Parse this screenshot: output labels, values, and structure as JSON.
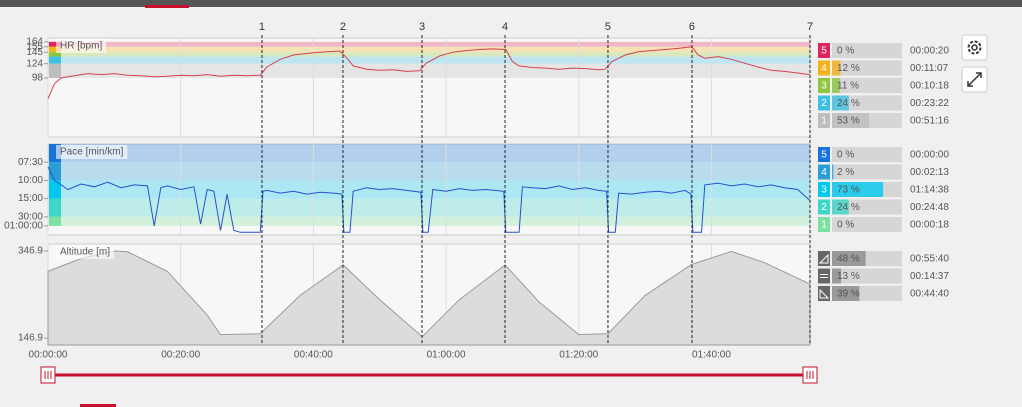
{
  "x_axis": {
    "xlim": [
      0,
      114.85
    ],
    "xticks": [
      {
        "value": 0,
        "label": "00:00:00"
      },
      {
        "value": 20,
        "label": "00:20:00"
      },
      {
        "value": 40,
        "label": "00:40:00"
      },
      {
        "value": 60,
        "label": "01:00:00"
      },
      {
        "value": 80,
        "label": "01:20:00"
      },
      {
        "value": 100,
        "label": "01:40:00"
      }
    ]
  },
  "laps": {
    "labels": [
      "1",
      "2",
      "3",
      "4",
      "5",
      "6",
      "7"
    ],
    "x": [
      32.25,
      44.46,
      56.37,
      68.88,
      84.4,
      97.06,
      114.85
    ]
  },
  "chart_data": [
    {
      "type": "line",
      "title": "HR [bpm]",
      "color": "#d6404f",
      "ylim": [
        -10,
        171
      ],
      "yticks": [
        98,
        124,
        145,
        155,
        164
      ],
      "x": [
        0,
        1,
        2,
        4,
        6,
        8,
        10,
        12,
        14,
        16,
        18,
        20,
        22,
        24,
        26,
        28,
        30,
        32,
        33,
        35,
        37,
        40,
        42,
        44,
        45,
        46,
        48,
        50,
        52,
        54,
        56,
        57,
        59,
        61,
        63,
        65,
        67,
        69,
        70,
        71,
        73,
        75,
        77,
        79,
        81,
        83,
        84,
        85,
        87,
        89,
        91,
        93,
        95,
        97,
        98,
        99,
        101,
        103,
        105,
        107,
        109,
        111,
        113,
        114.8
      ],
      "values": [
        60,
        88,
        98,
        102,
        106,
        104,
        106,
        103,
        102,
        100,
        101,
        103,
        102,
        104,
        101,
        103,
        102,
        103,
        118,
        132,
        140,
        144,
        146,
        147,
        135,
        120,
        114,
        112,
        113,
        110,
        111,
        125,
        138,
        145,
        148,
        150,
        151,
        150,
        128,
        120,
        117,
        116,
        114,
        116,
        115,
        113,
        114,
        128,
        140,
        146,
        148,
        150,
        152,
        155,
        140,
        134,
        137,
        132,
        125,
        118,
        112,
        110,
        107,
        104
      ],
      "zones": {
        "labels": [
          "5",
          "4",
          "3",
          "2",
          "1"
        ],
        "colors": [
          "#e0245e",
          "#f5b21b",
          "#8dc63f",
          "#3fc0e0",
          "#bdbdbd"
        ],
        "ranges": [
          [
            155,
            164
          ],
          [
            145,
            155
          ],
          [
            137,
            145
          ],
          [
            124,
            137
          ],
          [
            98,
            124
          ]
        ],
        "values": [
          0,
          12,
          11,
          24,
          53
        ],
        "value_labels": [
          "0 %",
          "12 %",
          "11 %",
          "24 %",
          "53 %"
        ],
        "times": [
          "00:00:20",
          "00:11:07",
          "00:10:18",
          "00:23:22",
          "00:51:16"
        ]
      }
    },
    {
      "type": "line",
      "title": "Pace [min/km]",
      "color": "#2a4fd0",
      "ylim": [
        0,
        10
      ],
      "yticks": [
        {
          "value": 8,
          "label": "07:30"
        },
        {
          "value": 6,
          "label": "10:00"
        },
        {
          "value": 4,
          "label": "15:00"
        },
        {
          "value": 2,
          "label": "30:00"
        },
        {
          "value": 1,
          "label": "01:00:00"
        }
      ],
      "x": [
        0,
        1,
        2,
        3,
        5,
        7,
        9,
        11,
        13,
        15,
        16,
        17,
        18,
        20,
        22,
        23,
        24,
        25,
        26,
        27,
        28,
        29,
        30,
        31,
        32,
        32.4,
        33,
        35,
        37,
        39,
        41,
        43,
        44.3,
        44.6,
        45.5,
        46,
        48,
        50,
        52,
        54,
        56.2,
        56.5,
        57.3,
        58,
        60,
        62,
        64,
        66,
        68.7,
        69,
        71,
        71.5,
        73,
        75,
        77,
        79,
        81,
        83,
        84.2,
        84.5,
        85.5,
        86,
        88,
        90,
        92,
        94,
        96,
        96.9,
        97.2,
        98.5,
        99,
        101,
        103,
        105,
        107,
        109,
        111,
        113,
        114.8
      ],
      "values": [
        7.5,
        6,
        5.5,
        5.0,
        5.6,
        5.3,
        5.8,
        5.2,
        5.5,
        5.4,
        1.0,
        5.2,
        5.4,
        5.0,
        5.3,
        1.2,
        5.0,
        4.8,
        0.5,
        4.5,
        0.5,
        0.3,
        0.3,
        0.3,
        0.3,
        4.8,
        4.9,
        4.6,
        4.8,
        4.5,
        4.7,
        4.6,
        4.5,
        0.3,
        0.3,
        4.8,
        5.2,
        5.0,
        5.1,
        4.9,
        4.7,
        0.3,
        0.3,
        5.0,
        4.8,
        5.1,
        4.9,
        5.0,
        4.8,
        0.3,
        0.3,
        5.3,
        5.2,
        5.1,
        5.4,
        5.0,
        5.2,
        4.9,
        4.8,
        0.3,
        0.3,
        4.6,
        4.5,
        4.7,
        4.8,
        4.6,
        4.9,
        4.5,
        0.3,
        0.3,
        5.5,
        5.7,
        5.4,
        5.6,
        5.3,
        5.5,
        5.2,
        5.0,
        3.8
      ],
      "zones": {
        "labels": [
          "5",
          "4",
          "3",
          "2",
          "1"
        ],
        "colors": [
          "#1a73d9",
          "#2a9fd6",
          "#00c8ef",
          "#3dd6c9",
          "#7de0a0"
        ],
        "ranges": [
          [
            8,
            10
          ],
          [
            6,
            8
          ],
          [
            4,
            6
          ],
          [
            2,
            4
          ],
          [
            1,
            2
          ]
        ],
        "values": [
          0,
          2,
          73,
          24,
          0
        ],
        "value_labels": [
          "0 %",
          "2 %",
          "73 %",
          "24 %",
          "0 %"
        ],
        "times": [
          "00:00:00",
          "00:02:13",
          "01:14:38",
          "00:24:48",
          "00:00:18"
        ]
      }
    },
    {
      "type": "area",
      "title": "Altitude [m]",
      "color": "#9a9a9a",
      "ylim": [
        131,
        363
      ],
      "yticks": [
        346.9,
        146.9
      ],
      "x": [
        0,
        5,
        10,
        12,
        18,
        24,
        26,
        32,
        38,
        44.5,
        50,
        56.4,
        62,
        68.9,
        74,
        80,
        84.4,
        90,
        97,
        103,
        108,
        114.85
      ],
      "values": [
        300,
        330,
        346.9,
        345,
        300,
        200,
        155,
        157,
        245,
        315,
        235,
        150,
        235,
        315,
        230,
        155,
        157,
        245,
        316,
        346,
        320,
        271
      ],
      "zones": {
        "colors": [
          "#8a8a8a",
          "#8a8a8a",
          "#8a8a8a"
        ],
        "values": [
          48,
          13,
          39
        ],
        "value_labels": [
          "48 %",
          "13 %",
          "39 %"
        ],
        "times": [
          "00:55:40",
          "00:14:37",
          "00:44:40"
        ]
      }
    }
  ]
}
